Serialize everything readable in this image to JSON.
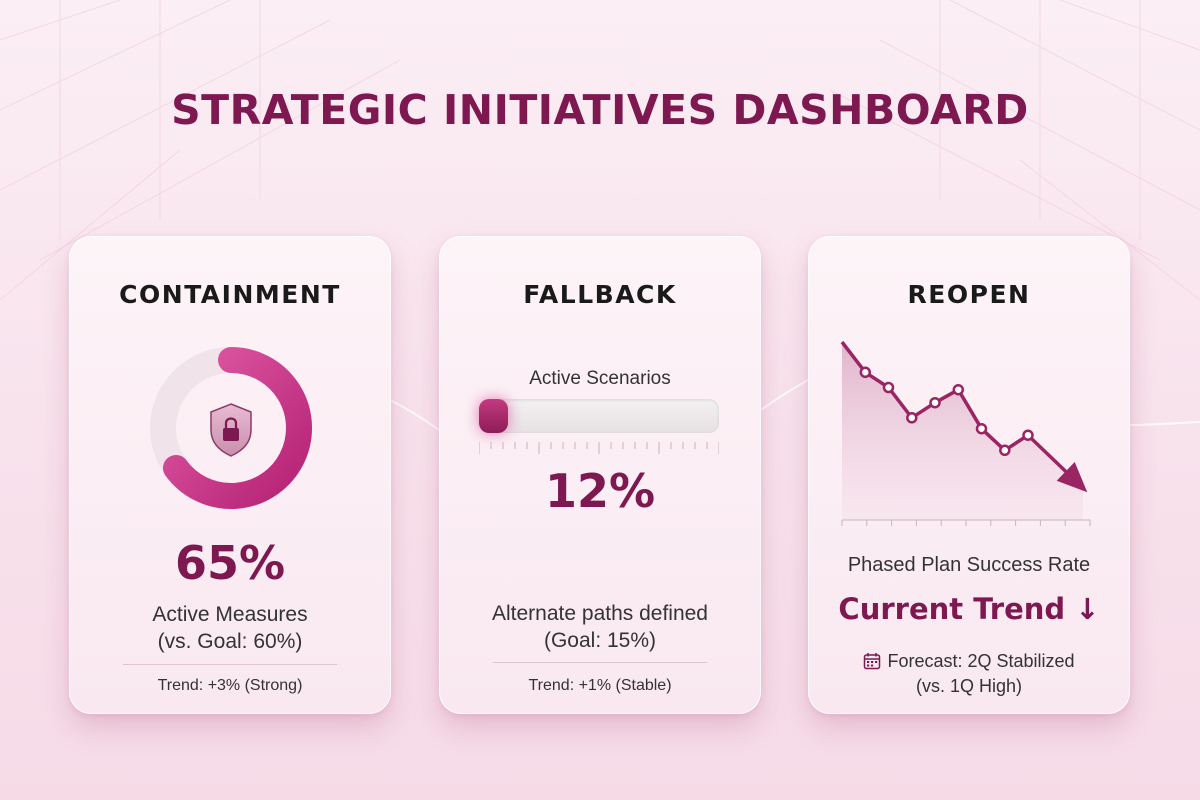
{
  "header": {
    "title": "STRATEGIC INITIATIVES DASHBOARD"
  },
  "colors": {
    "accent": "#7d1850",
    "magenta": "#c7318a",
    "track": "#e9dfe4"
  },
  "cards": {
    "containment": {
      "title": "CONTAINMENT",
      "icon": "shield-lock-icon",
      "value_text": "65%",
      "value_fraction": 0.65,
      "label": "Active Measures",
      "goal": "(vs. Goal: 60%)",
      "trend": "Trend: +3% (Strong)"
    },
    "fallback": {
      "title": "FALLBACK",
      "bar_label": "Active Scenarios",
      "value_text": "12%",
      "value_fraction": 0.12,
      "label": "Alternate paths defined",
      "goal": "(Goal: 15%)",
      "trend": "Trend: +1% (Stable)"
    },
    "reopen": {
      "title": "REOPEN",
      "chart_label": "Phased Plan Success Rate",
      "headline": "Current Trend ↓",
      "forecast_icon": "calendar-icon",
      "forecast": "Forecast: 2Q Stabilized",
      "forecast_sub": "(vs. 1Q High)"
    }
  },
  "chart_data": {
    "type": "line",
    "title": "",
    "x": [
      1,
      2,
      3,
      4,
      5,
      6,
      7,
      8,
      9
    ],
    "series": [
      {
        "values": [
          100,
          86,
          79,
          65,
          72,
          78,
          60,
          50,
          57
        ]
      }
    ],
    "trend_direction": "down",
    "grid": false
  }
}
